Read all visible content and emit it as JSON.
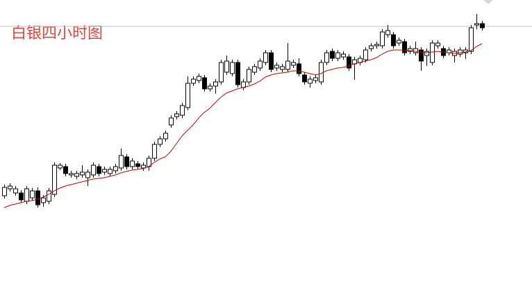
{
  "chart_data": {
    "type": "candlestick",
    "title": "白银四小时图",
    "ylim": [
      0,
      425
    ],
    "up_color": "#ffffff",
    "down_color": "#000000",
    "edge_color": "#000000",
    "price_line": 387,
    "price_line_color": "#c0c0c0",
    "open": [
      143,
      153,
      147,
      147,
      135,
      140,
      150,
      133,
      135,
      145,
      183,
      185,
      173,
      171,
      173,
      169,
      173,
      185,
      177,
      175,
      179,
      183,
      199,
      185,
      189,
      183,
      185,
      197,
      217,
      225,
      245,
      257,
      259,
      270,
      305,
      309,
      313,
      297,
      301,
      307,
      321,
      319,
      335,
      299,
      307,
      321,
      327,
      335,
      349,
      327,
      325,
      325,
      331,
      333,
      317,
      305,
      309,
      307,
      335,
      351,
      341,
      343,
      343,
      333,
      335,
      339,
      355,
      359,
      359,
      375,
      375,
      363,
      365,
      351,
      349,
      353,
      345,
      335,
      359,
      355,
      349,
      345,
      347,
      349,
      351,
      389,
      391
    ],
    "high": [
      159,
      161,
      157,
      151,
      157,
      154,
      155,
      144,
      154,
      191,
      190,
      189,
      179,
      179,
      187,
      181,
      191,
      189,
      185,
      185,
      189,
      211,
      203,
      197,
      193,
      191,
      201,
      221,
      229,
      237,
      259,
      265,
      277,
      315,
      315,
      319,
      317,
      305,
      311,
      339,
      345,
      339,
      339,
      311,
      329,
      333,
      341,
      353,
      353,
      335,
      333,
      363,
      339,
      341,
      321,
      315,
      317,
      339,
      353,
      355,
      353,
      351,
      347,
      343,
      345,
      357,
      363,
      365,
      383,
      389,
      379,
      371,
      369,
      359,
      365,
      357,
      355,
      367,
      367,
      359,
      357,
      355,
      357,
      357,
      389,
      405,
      395
    ],
    "low": [
      139,
      149,
      143,
      133,
      131,
      136,
      126,
      127,
      131,
      141,
      180,
      171,
      169,
      167,
      169,
      157,
      169,
      171,
      173,
      171,
      175,
      179,
      181,
      181,
      181,
      179,
      179,
      193,
      213,
      221,
      241,
      253,
      255,
      266,
      301,
      305,
      293,
      293,
      290,
      303,
      317,
      315,
      299,
      295,
      303,
      317,
      323,
      331,
      321,
      323,
      321,
      321,
      327,
      315,
      303,
      299,
      305,
      303,
      331,
      337,
      337,
      339,
      323,
      310,
      331,
      335,
      351,
      355,
      355,
      371,
      355,
      359,
      345,
      347,
      345,
      323,
      330,
      331,
      355,
      341,
      345,
      335,
      343,
      340,
      347,
      383,
      381
    ],
    "close": [
      155,
      157,
      153,
      137,
      153,
      150,
      130,
      140,
      150,
      187,
      187,
      175,
      175,
      175,
      177,
      177,
      187,
      175,
      181,
      181,
      185,
      201,
      185,
      193,
      185,
      187,
      197,
      217,
      225,
      233,
      255,
      261,
      273,
      305,
      311,
      315,
      297,
      301,
      307,
      335,
      337,
      335,
      303,
      307,
      325,
      329,
      337,
      349,
      325,
      331,
      329,
      337,
      335,
      319,
      307,
      311,
      313,
      335,
      349,
      341,
      349,
      347,
      327,
      339,
      341,
      353,
      359,
      361,
      379,
      381,
      359,
      367,
      349,
      355,
      355,
      337,
      351,
      363,
      363,
      345,
      353,
      351,
      353,
      353,
      385,
      391,
      385
    ],
    "ma": {
      "color": "#cc0000",
      "values": [
        126,
        129,
        131,
        133,
        135,
        136,
        138,
        141,
        145,
        150,
        154,
        157,
        159,
        161,
        163,
        165,
        167,
        168,
        169,
        171,
        173,
        176,
        178,
        180,
        181,
        182,
        185,
        191,
        196,
        199,
        207,
        218,
        229,
        237,
        245,
        255,
        263,
        269,
        277,
        285,
        291,
        294,
        297,
        299,
        301,
        304,
        308,
        314,
        317,
        319,
        320,
        321,
        323,
        323,
        321,
        319,
        317,
        319,
        323,
        325,
        327,
        328,
        330,
        333,
        335,
        337,
        339,
        342,
        347,
        351,
        353,
        353,
        353,
        352,
        351,
        350,
        349,
        350,
        351,
        350,
        349,
        348,
        349,
        350,
        352,
        358,
        362
      ]
    }
  }
}
